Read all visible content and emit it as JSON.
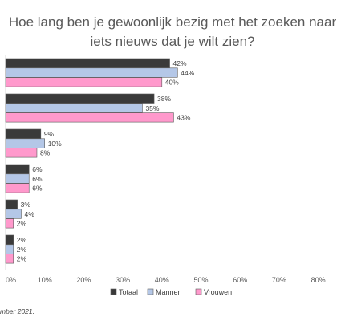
{
  "title_lines": [
    "Hoe lang ben je gewoonlijk bezig met het zoeken naar",
    "iets nieuws dat je wilt zien?"
  ],
  "footnote": "mber 2021.",
  "chart_data": {
    "type": "bar",
    "orientation": "horizontal",
    "groups": 6,
    "xlim": [
      0,
      80
    ],
    "xticks": [
      0,
      10,
      20,
      30,
      40,
      50,
      60,
      70,
      80
    ],
    "tick_suffix": "%",
    "grid": false,
    "legend_position": "bottom",
    "series": [
      {
        "name": "Totaal",
        "color": "#3a3a3a",
        "values": [
          42,
          38,
          9,
          6,
          3,
          2
        ]
      },
      {
        "name": "Mannen",
        "color": "#b4c7e7",
        "values": [
          44,
          35,
          10,
          6,
          4,
          2
        ]
      },
      {
        "name": "Vrouwen",
        "color": "#ff99cc",
        "values": [
          40,
          43,
          8,
          6,
          2,
          2
        ]
      }
    ]
  }
}
